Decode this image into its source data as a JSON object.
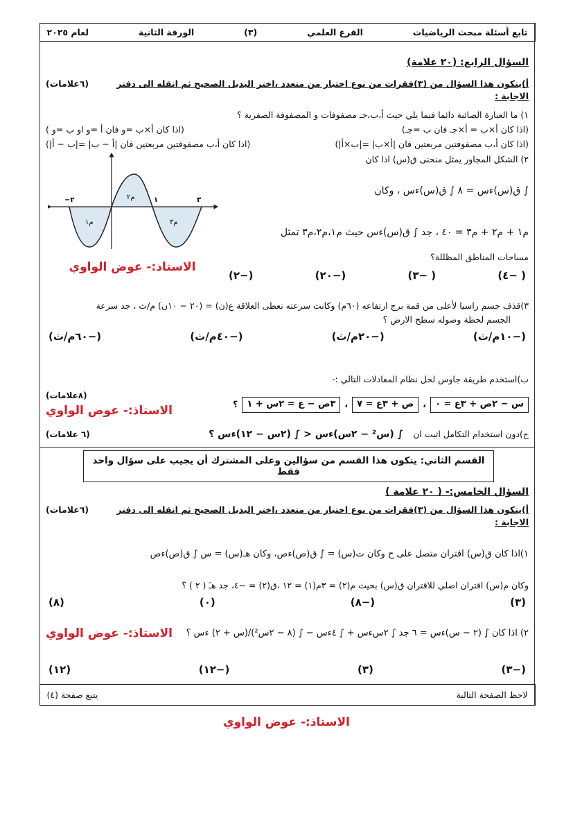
{
  "header": {
    "subject": "تابع أسئلة مبحث الرياضيات",
    "branch": "الفرع العلمي",
    "page": "(٣)",
    "paper": "الورقة الثانية",
    "year": "لعام ٢٠٢٥"
  },
  "q4": {
    "title": "السؤال الرابع: (٢٠ علامة)",
    "instruction": "أ)يتكون هذا السؤال من (٣)فقرات من نوع اختيار من متعدد ،اختر البديل الصحيح ثم انقله الى دفتر الاجابة :",
    "instruction_marks": "(٦علامات)",
    "item1": {
      "text": "١) ما العبارة الصائبة دائما فيما يلي حيث  أ،ب،جـ مصفوفات     و المصفوفة الصفرية ؟",
      "options": [
        "(اذا كان أ×ب = أ×جـ فان ب =جـ)",
        "(اذا كان أ×ب =و فان أ =و او ب =و )",
        "(اذا كان  أ،ب مصفوفتين مربعتين فان |أ×ب| =|ب×أ|)",
        "(اذا كان  أ،ب مصفوفتين مربعتين فان |أ − ب| =|ب − أ|)"
      ]
    },
    "item2": {
      "text": "٢) الشكل المجاور يمثل منحنى ق(س) اذا كان",
      "line1": "∫ ق(س)ءس = ٨ ∫ ق(س)ءس ، وكان",
      "line2": "م١ + م٢ + م٣ = ٤٠ ، جد ∫ ق(س)ءس حيث م١،م٢،م٣ تمثل",
      "line3": "مساحات المناطق المظللة؟",
      "options": [
        "( −٤)",
        "( −٣)",
        "(−٢٠)",
        "(−٢)"
      ],
      "graph_labels": {
        "x_neg": "−٢",
        "x_one": "١",
        "x_three": "٣",
        "m1": "م١",
        "m2": "م٢",
        "m3": "م٣"
      }
    },
    "item3": {
      "text": "٣)قذف جسم راسيا لأعلى من قمة برج ارتفاعه (٦٠م) وكانت سرعته تعطى العلاقة  ع(ن) = (٢٠ − ١٠ن) م/ث ، جد سرعة",
      "text2": "الجسم لحظة وصوله سطح الارض ؟",
      "options": [
        "(−١٠م/ث)",
        "(−٢٠م/ث)",
        "(−٤٠م/ث)",
        "(−٦٠م/ث)"
      ]
    },
    "part_b": {
      "text": "ب)استخدم طريقة جاوس لحل نظام المعادلات التالي :-",
      "equations": [
        "س − ٢ص + ٣ع = ٠",
        "ص + ٣ع = ٧",
        "٣ص − ع = ٢س + ١"
      ],
      "sep": "،",
      "end": "؟",
      "marks": "(٨علامات)"
    },
    "part_c": {
      "text": "ج)دون استخدام التكامل اثبت ان",
      "expr": "∫ (س² − ٢س)ءس < ∫ (٢س − ١٢)ءس ؟",
      "marks": "(٦ علامات)"
    }
  },
  "section2": {
    "text": "القسم الثاني: يتكون هذا القسم من سؤالين وعلى المشترك أن يجيب على سؤال واحد فقط"
  },
  "q5": {
    "title": "السؤال الخامس:- ( ٢٠ علامة )",
    "instruction": "أ)يتكون هذا السؤال من (٣)فقرات من نوع اختيار من متعدد ،اختر البديل الصحيح ثم انقله الى دفتر الاجابة :",
    "instruction_marks": "(٦علامات)",
    "item1": {
      "text": "١)اذا كان ق(س) اقتران متصل على ح وكان ت(س) = ∫ ق(ص)ءص، وكان هـ(س) = س ∫ ق(ص)ءص",
      "text2": "وكان م(س) اقتران اصلي للاقتران ق(س) بحيث م(٢) = ٣م(١) = ١٢ ،ق(٢) = −٤، جد هـَ ( ٢ ) ؟",
      "options": [
        "(٣)",
        "(−٨)",
        "(٠)",
        "(٨)"
      ]
    },
    "item2": {
      "text": "٢) اذا كان ∫ (٢ − س)ءس = ٦ جد ∫ ٢سءس + ∫ ٤ءس − ∫ (٨ − ٢س²)/(س + ٢) ءس ؟",
      "options": [
        "(−٣)",
        "(٣)",
        "(−١٢)",
        "(١٢)"
      ]
    }
  },
  "footer": {
    "left_note": "لاحظ الصفحة التالية",
    "continue": "يتبع صفحة (٤)"
  },
  "teacher": "الاستاذ:- عوض الواوي",
  "colors": {
    "teacher_red": "#d2202a",
    "shade": "#dbe8f2"
  }
}
